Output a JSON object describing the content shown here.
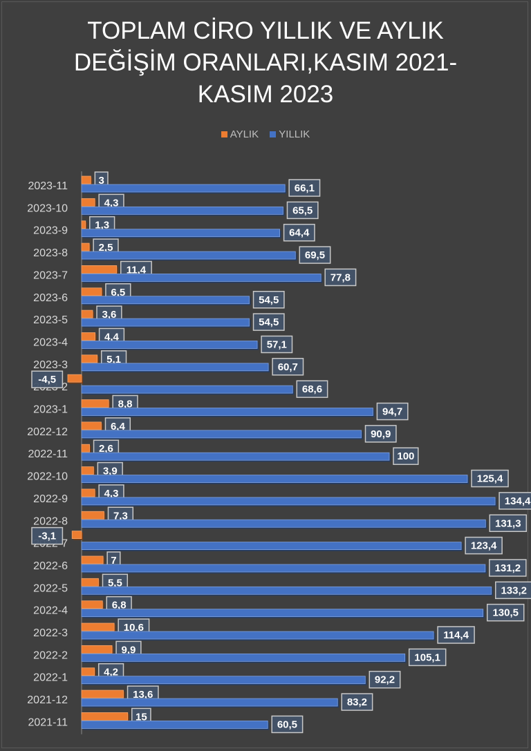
{
  "chart_data": {
    "type": "bar",
    "orientation": "horizontal",
    "title": "TOPLAM CİRO YILLIK VE AYLIK DEĞİŞİM ORANLARI,KASIM 2021-KASIM 2023",
    "title_lines": [
      "TOPLAM CİRO YILLIK VE AYLIK",
      "DEĞİŞİM ORANLARI,KASIM 2021-",
      "KASIM 2023"
    ],
    "legend_position": "top",
    "xlim": [
      -10,
      140
    ],
    "grid": false,
    "categories": [
      "2023-11",
      "2023-10",
      "2023-9",
      "2023-8",
      "2023-7",
      "2023-6",
      "2023-5",
      "2023-4",
      "2023-3",
      "2023-2",
      "2023-1",
      "2022-12",
      "2022-11",
      "2022-10",
      "2022-9",
      "2022-8",
      "2022-7",
      "2022-6",
      "2022-5",
      "2022-4",
      "2022-3",
      "2022-2",
      "2022-1",
      "2021-12",
      "2021-11"
    ],
    "series": [
      {
        "name": "AYLIK",
        "color": "#ed7d31",
        "labels": [
          "3",
          "4,3",
          "1,3",
          "2,5",
          "11,4",
          "6,5",
          "3,6",
          "4,4",
          "5,1",
          "-4,5",
          "8,8",
          "6,4",
          "2,6",
          "3,9",
          "4,3",
          "7,3",
          "-3,1",
          "7",
          "5,5",
          "6,8",
          "10,6",
          "9,9",
          "4,2",
          "13,6",
          "15"
        ],
        "values": [
          3,
          4.3,
          1.3,
          2.5,
          11.4,
          6.5,
          3.6,
          4.4,
          5.1,
          -4.5,
          8.8,
          6.4,
          2.6,
          3.9,
          4.3,
          7.3,
          -3.1,
          7,
          5.5,
          6.8,
          10.6,
          9.9,
          4.2,
          13.6,
          15
        ]
      },
      {
        "name": "YILLIK",
        "color": "#4472c4",
        "labels": [
          "66,1",
          "65,5",
          "64,4",
          "69,5",
          "77,8",
          "54,5",
          "54,5",
          "57,1",
          "60,7",
          "68,6",
          "94,7",
          "90,9",
          "100",
          "125,4",
          "134,4",
          "131,3",
          "123,4",
          "131,2",
          "133,2",
          "130,5",
          "114,4",
          "105,1",
          "92,2",
          "83,2",
          "60,5"
        ],
        "values": [
          66.1,
          65.5,
          64.4,
          69.5,
          77.8,
          54.5,
          54.5,
          57.1,
          60.7,
          68.6,
          94.7,
          90.9,
          100,
          125.4,
          134.4,
          131.3,
          123.4,
          131.2,
          133.2,
          130.5,
          114.4,
          105.1,
          92.2,
          83.2,
          60.5
        ]
      }
    ]
  }
}
